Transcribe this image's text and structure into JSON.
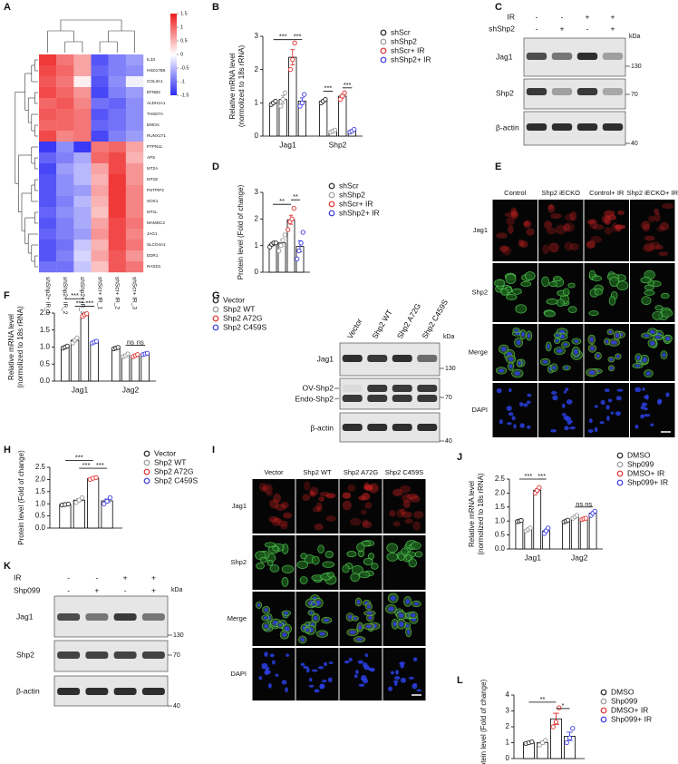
{
  "panel_letters": [
    "A",
    "B",
    "C",
    "D",
    "E",
    "F",
    "G",
    "H",
    "I",
    "J",
    "K",
    "L"
  ],
  "chart_data": [
    {
      "type": "heatmap",
      "rows": [
        "IL33",
        "HSD17B6",
        "COL3A1",
        "EFNB2",
        "ALDH1A1",
        "THSD7A",
        "EMCN",
        "RUNX1T1",
        "PTPN11",
        "APS",
        "MT2A",
        "MT1E",
        "PSTPIP2",
        "SOX1",
        "MT1L",
        "MAMDC2",
        "JAG1",
        "SLCO4A1",
        "EDR1",
        "RASD1"
      ],
      "row_label_colors": [
        "#111111",
        "#111111",
        "#111111",
        "#111111",
        "#111111",
        "#111111",
        "#111111",
        "#111111",
        "#d62020",
        "#111111",
        "#111111",
        "#111111",
        "#111111",
        "#111111",
        "#111111",
        "#111111",
        "#d62020",
        "#111111",
        "#111111",
        "#111111"
      ],
      "columns": [
        "shShp2+ IR_1",
        "shShp2+ IR_2",
        "shShp2+ IR_3",
        "shScr+ IR_1",
        "shScr+ IR_2",
        "shScr+ IR_3"
      ],
      "values": [
        [
          1.3,
          0.9,
          0.6,
          -1.2,
          -0.9,
          -0.7
        ],
        [
          1.2,
          1.0,
          0.6,
          -1.1,
          -0.9,
          -0.8
        ],
        [
          1.1,
          0.9,
          0.1,
          -1.2,
          -0.8,
          -0.1
        ],
        [
          1.2,
          1.0,
          0.7,
          -1.3,
          -0.9,
          -0.7
        ],
        [
          1.0,
          1.1,
          0.8,
          -1.0,
          -1.1,
          -0.8
        ],
        [
          1.1,
          1.0,
          0.9,
          -1.2,
          -1.0,
          -0.8
        ],
        [
          1.0,
          1.0,
          0.9,
          -1.1,
          -1.0,
          -0.8
        ],
        [
          1.2,
          0.8,
          0.9,
          -1.3,
          -0.9,
          -0.7
        ],
        [
          -1.4,
          -0.8,
          -1.4,
          0.9,
          1.0,
          0.6
        ],
        [
          -1.1,
          -0.9,
          -0.6,
          1.0,
          1.2,
          0.5
        ],
        [
          -1.3,
          -0.7,
          -0.5,
          0.6,
          1.2,
          0.7
        ],
        [
          -1.2,
          -0.8,
          -0.5,
          0.5,
          1.3,
          0.7
        ],
        [
          -1.2,
          -0.8,
          -0.7,
          0.6,
          1.3,
          0.8
        ],
        [
          -1.2,
          -0.9,
          -0.5,
          0.5,
          1.3,
          0.8
        ],
        [
          -1.1,
          -0.8,
          -0.6,
          0.4,
          1.3,
          0.8
        ],
        [
          -1.2,
          -0.9,
          -0.6,
          0.6,
          1.2,
          0.9
        ],
        [
          -1.1,
          -0.9,
          -0.7,
          0.7,
          1.2,
          0.8
        ],
        [
          -1.2,
          -1.0,
          -0.4,
          0.5,
          1.2,
          0.9
        ],
        [
          -1.2,
          -0.9,
          -0.3,
          0.6,
          1.1,
          0.7
        ],
        [
          -1.0,
          -1.0,
          -0.4,
          0.4,
          1.1,
          0.9
        ]
      ],
      "zlim": [
        -1.5,
        1.5
      ],
      "zticks": [
        1.5,
        1,
        0.5,
        0,
        -0.5,
        -1,
        -1.5
      ],
      "colors": [
        "#2b2bf5",
        "#ffffff",
        "#ee1b1b"
      ]
    },
    {
      "type": "bar",
      "ylabel": [
        "Relative mRNA level",
        "(normolized to 18s rRNA)"
      ],
      "categories": [
        "Jag1",
        "Shp2"
      ],
      "series": [
        {
          "name": "shScr",
          "color": "#222222",
          "values": [
            1.0,
            1.05
          ],
          "errors": [
            0.03,
            0.03
          ],
          "points": [
            [
              0.95,
              1.0,
              1.05
            ],
            [
              1.0,
              1.05,
              1.1
            ]
          ]
        },
        {
          "name": "shShp2",
          "color": "#999999",
          "values": [
            1.1,
            0.15
          ],
          "errors": [
            0.12,
            0.02
          ],
          "points": [
            [
              0.9,
              1.1,
              1.3
            ],
            [
              0.12,
              0.15,
              0.18
            ]
          ]
        },
        {
          "name": "shScr+ IR",
          "color": "#e03030",
          "values": [
            2.37,
            1.2
          ],
          "errors": [
            0.23,
            0.06
          ],
          "points": [
            [
              2.0,
              2.3,
              2.8
            ],
            [
              1.1,
              1.2,
              1.3
            ]
          ]
        },
        {
          "name": "shShp2+ IR",
          "color": "#3a3ae0",
          "values": [
            1.05,
            0.16
          ],
          "errors": [
            0.1,
            0.03
          ],
          "points": [
            [
              0.9,
              1.0,
              1.25
            ],
            [
              0.12,
              0.15,
              0.2
            ]
          ]
        }
      ],
      "ylim": [
        0,
        3
      ],
      "yticks": [
        0,
        1,
        2,
        3
      ],
      "annotations": [
        "***",
        "***",
        "***",
        "***"
      ]
    },
    {
      "type": "bar",
      "ylabel": [
        "Protein level (Fold of change)"
      ],
      "categories": [
        null
      ],
      "series": [
        {
          "name": "shScr",
          "color": "#222222",
          "values": [
            1.05
          ],
          "errors": [
            0.05
          ],
          "points": [
            [
              0.95,
              1.05,
              1.1,
              1.1
            ]
          ]
        },
        {
          "name": "shShp2",
          "color": "#999999",
          "values": [
            1.1
          ],
          "errors": [
            0.13
          ],
          "points": [
            [
              0.8,
              1.0,
              1.2,
              1.4
            ]
          ]
        },
        {
          "name": "shScr+ IR",
          "color": "#e03030",
          "values": [
            1.97
          ],
          "errors": [
            0.17
          ],
          "points": [
            [
              1.6,
              1.9,
              2.0,
              2.4
            ]
          ]
        },
        {
          "name": "shShp2+ IR",
          "color": "#3a3ae0",
          "values": [
            0.97
          ],
          "errors": [
            0.21
          ],
          "points": [
            [
              0.5,
              0.8,
              1.1,
              1.5
            ]
          ]
        }
      ],
      "ylim": [
        0,
        3
      ],
      "yticks": [
        0,
        1,
        2,
        3
      ],
      "annotations": [
        "**",
        "**"
      ]
    },
    {
      "type": "bar",
      "ylabel": [
        "Relative mRNA level",
        "(normolized to 18s rRNA)"
      ],
      "categories": [
        "Jag1",
        "Jag2"
      ],
      "series": [
        {
          "name": "Vector",
          "color": "#222222",
          "values": [
            1.0,
            0.97
          ],
          "errors": [
            0.02,
            0.02
          ],
          "points": [
            [
              0.97,
              1.0,
              1.03
            ],
            [
              0.95,
              0.97,
              0.99
            ]
          ]
        },
        {
          "name": "Shp2 WT",
          "color": "#999999",
          "values": [
            1.2,
            0.76
          ],
          "errors": [
            0.04,
            0.02
          ],
          "points": [
            [
              1.12,
              1.2,
              1.27
            ],
            [
              0.72,
              0.75,
              0.8
            ]
          ]
        },
        {
          "name": "Shp2 A72G",
          "color": "#e03030",
          "values": [
            1.94,
            0.75
          ],
          "errors": [
            0.02,
            0.02
          ],
          "points": [
            [
              1.9,
              1.95,
              1.98
            ],
            [
              0.72,
              0.75,
              0.78
            ]
          ]
        },
        {
          "name": "Shp2 C459S",
          "color": "#3a3ae0",
          "values": [
            1.15,
            0.8
          ],
          "errors": [
            0.02,
            0.02
          ],
          "points": [
            [
              1.12,
              1.15,
              1.17
            ],
            [
              0.78,
              0.8,
              0.82
            ]
          ]
        }
      ],
      "ylim": [
        0,
        2
      ],
      "yticks": [
        {
          "value": 0,
          "label": "0.0"
        },
        0.5,
        {
          "value": 1,
          "label": "1.0"
        },
        1.5,
        {
          "value": 2,
          "label": "2.0"
        }
      ],
      "annotations": [
        "***",
        "***",
        "***",
        "ns",
        "ns"
      ]
    },
    {
      "type": "bar",
      "ylabel": [
        "Protein level (Fold of change)"
      ],
      "categories": [
        null
      ],
      "series": [
        {
          "name": "Vector",
          "color": "#222222",
          "values": [
            0.97
          ],
          "errors": [
            0.02
          ],
          "points": [
            [
              0.95,
              0.97,
              0.99
            ]
          ]
        },
        {
          "name": "Shp2 WT",
          "color": "#999999",
          "values": [
            1.15
          ],
          "errors": [
            0.06
          ],
          "points": [
            [
              1.05,
              1.15,
              1.25
            ]
          ]
        },
        {
          "name": "Shp2 A72G",
          "color": "#e03030",
          "values": [
            2.04
          ],
          "errors": [
            0.02
          ],
          "points": [
            [
              2.0,
              2.05,
              2.08
            ]
          ]
        },
        {
          "name": "Shp2 C459S",
          "color": "#3a3ae0",
          "values": [
            1.12
          ],
          "errors": [
            0.07
          ],
          "points": [
            [
              1.0,
              1.1,
              1.25
            ]
          ]
        }
      ],
      "ylim": [
        0,
        2.5
      ],
      "yticks": [
        {
          "value": 0,
          "label": "0.0"
        },
        0.5,
        {
          "value": 1,
          "label": "1.0"
        },
        1.5,
        {
          "value": 2,
          "label": "2.0"
        },
        2.5
      ],
      "annotations": [
        "***",
        "***",
        "***"
      ]
    },
    {
      "type": "bar",
      "ylabel": [
        "Relative mRNA level",
        "(normolized to 18s rRNA)"
      ],
      "categories": [
        "Jag1",
        "Jag2"
      ],
      "series": [
        {
          "name": "DMSO",
          "color": "#222222",
          "values": [
            1.0,
            1.0
          ],
          "errors": [
            0.02,
            0.02
          ],
          "points": [
            [
              0.98,
              1.0,
              1.02
            ],
            [
              0.97,
              1.0,
              1.03
            ]
          ]
        },
        {
          "name": "Shp099",
          "color": "#999999",
          "values": [
            0.7,
            1.15
          ],
          "errors": [
            0.03,
            0.03
          ],
          "points": [
            [
              0.65,
              0.7,
              0.75
            ],
            [
              1.1,
              1.15,
              1.2
            ]
          ]
        },
        {
          "name": "DMSO+ IR",
          "color": "#e03030",
          "values": [
            2.1,
            1.08
          ],
          "errors": [
            0.06,
            0.02
          ],
          "points": [
            [
              2.0,
              2.1,
              2.2
            ],
            [
              1.05,
              1.08,
              1.1
            ]
          ]
        },
        {
          "name": "Shp099+ IR",
          "color": "#3a3ae0",
          "values": [
            0.65,
            1.28
          ],
          "errors": [
            0.06,
            0.04
          ],
          "points": [
            [
              0.55,
              0.65,
              0.75
            ],
            [
              1.2,
              1.28,
              1.35
            ]
          ]
        }
      ],
      "ylim": [
        0,
        2.5
      ],
      "yticks": [
        {
          "value": 0,
          "label": "0.0"
        },
        0.5,
        {
          "value": 1,
          "label": "1.0"
        },
        1.5,
        {
          "value": 2,
          "label": "2.0"
        },
        2.5
      ],
      "annotations": [
        "***",
        "***",
        "ns",
        "ns"
      ]
    },
    {
      "type": "bar",
      "ylabel": [
        "Protein level (Fold of change)"
      ],
      "categories": [
        null
      ],
      "series": [
        {
          "name": "DMSO",
          "color": "#222222",
          "values": [
            1.0
          ],
          "errors": [
            0.03
          ],
          "points": [
            [
              0.95,
              1.0,
              1.05
            ]
          ]
        },
        {
          "name": "Shp099",
          "color": "#999999",
          "values": [
            1.0
          ],
          "errors": [
            0.09
          ],
          "points": [
            [
              0.85,
              1.0,
              1.15
            ]
          ]
        },
        {
          "name": "DMSO+ IR",
          "color": "#e03030",
          "values": [
            2.5
          ],
          "errors": [
            0.35
          ],
          "points": [
            [
              2.0,
              2.3,
              3.2
            ]
          ]
        },
        {
          "name": "Shp099+ IR",
          "color": "#3a3ae0",
          "values": [
            1.4
          ],
          "errors": [
            0.26
          ],
          "points": [
            [
              1.0,
              1.3,
              1.9
            ]
          ]
        }
      ],
      "ylim": [
        0,
        4
      ],
      "yticks": [
        0,
        1,
        2,
        3,
        4
      ],
      "annotations": [
        "**",
        "*"
      ]
    }
  ],
  "blots": [
    {
      "header_rows": [
        {
          "label": "IR",
          "marks": [
            "-",
            "-",
            "+",
            "+"
          ]
        },
        {
          "label": "shShp2",
          "marks": [
            "-",
            "+",
            "-",
            "+"
          ]
        }
      ],
      "unit": "kDa",
      "rows": [
        {
          "labels": [
            "Jag1"
          ],
          "marker": "130"
        },
        {
          "labels": [
            "Shp2"
          ],
          "marker": "70"
        },
        {
          "labels": [
            "β-actin"
          ],
          "marker": "40"
        }
      ]
    },
    {
      "column_labels": [
        "Vector",
        "Shp2 WT",
        "Shp2 A72G",
        "Shp2 C459S"
      ],
      "unit": "kDa",
      "rows": [
        {
          "labels": [
            "Jag1"
          ],
          "marker": "130"
        },
        {
          "labels": [
            "OV-Shp2",
            "Endo-Shp2"
          ],
          "marker": "70"
        },
        {
          "labels": [
            "β-actin"
          ],
          "marker": "40"
        }
      ]
    },
    {
      "header_rows": [
        {
          "label": "IR",
          "marks": [
            "-",
            "-",
            "+",
            "+"
          ]
        },
        {
          "label": "Shp099",
          "marks": [
            "-",
            "+",
            "-",
            "+"
          ]
        }
      ],
      "unit": "kDa",
      "rows": [
        {
          "labels": [
            "Jag1"
          ],
          "marker": "130"
        },
        {
          "labels": [
            "Shp2"
          ],
          "marker": "70"
        },
        {
          "labels": [
            "β-actin"
          ],
          "marker": "40"
        }
      ]
    }
  ],
  "images": [
    {
      "columns": [
        "Control",
        "Shp2 iECKO",
        "Control+ IR",
        "Shp2 iECKO+ IR"
      ],
      "rows": [
        "Jag1",
        "Shp2",
        "Merge",
        "DAPI"
      ],
      "row_label_colors": [
        "#e02020",
        "#3cb83c",
        "#111111",
        "#2f4fe0"
      ]
    },
    {
      "columns": [
        "Vector",
        "Shp2 WT",
        "Shp2 A72G",
        "Shp2 C459S"
      ],
      "rows": [
        "Jag1",
        "Shp2",
        "Merge",
        "DAPI"
      ],
      "row_label_colors": [
        "#e02020",
        "#3cb83c",
        "#111111",
        "#2f4fe0"
      ]
    }
  ]
}
